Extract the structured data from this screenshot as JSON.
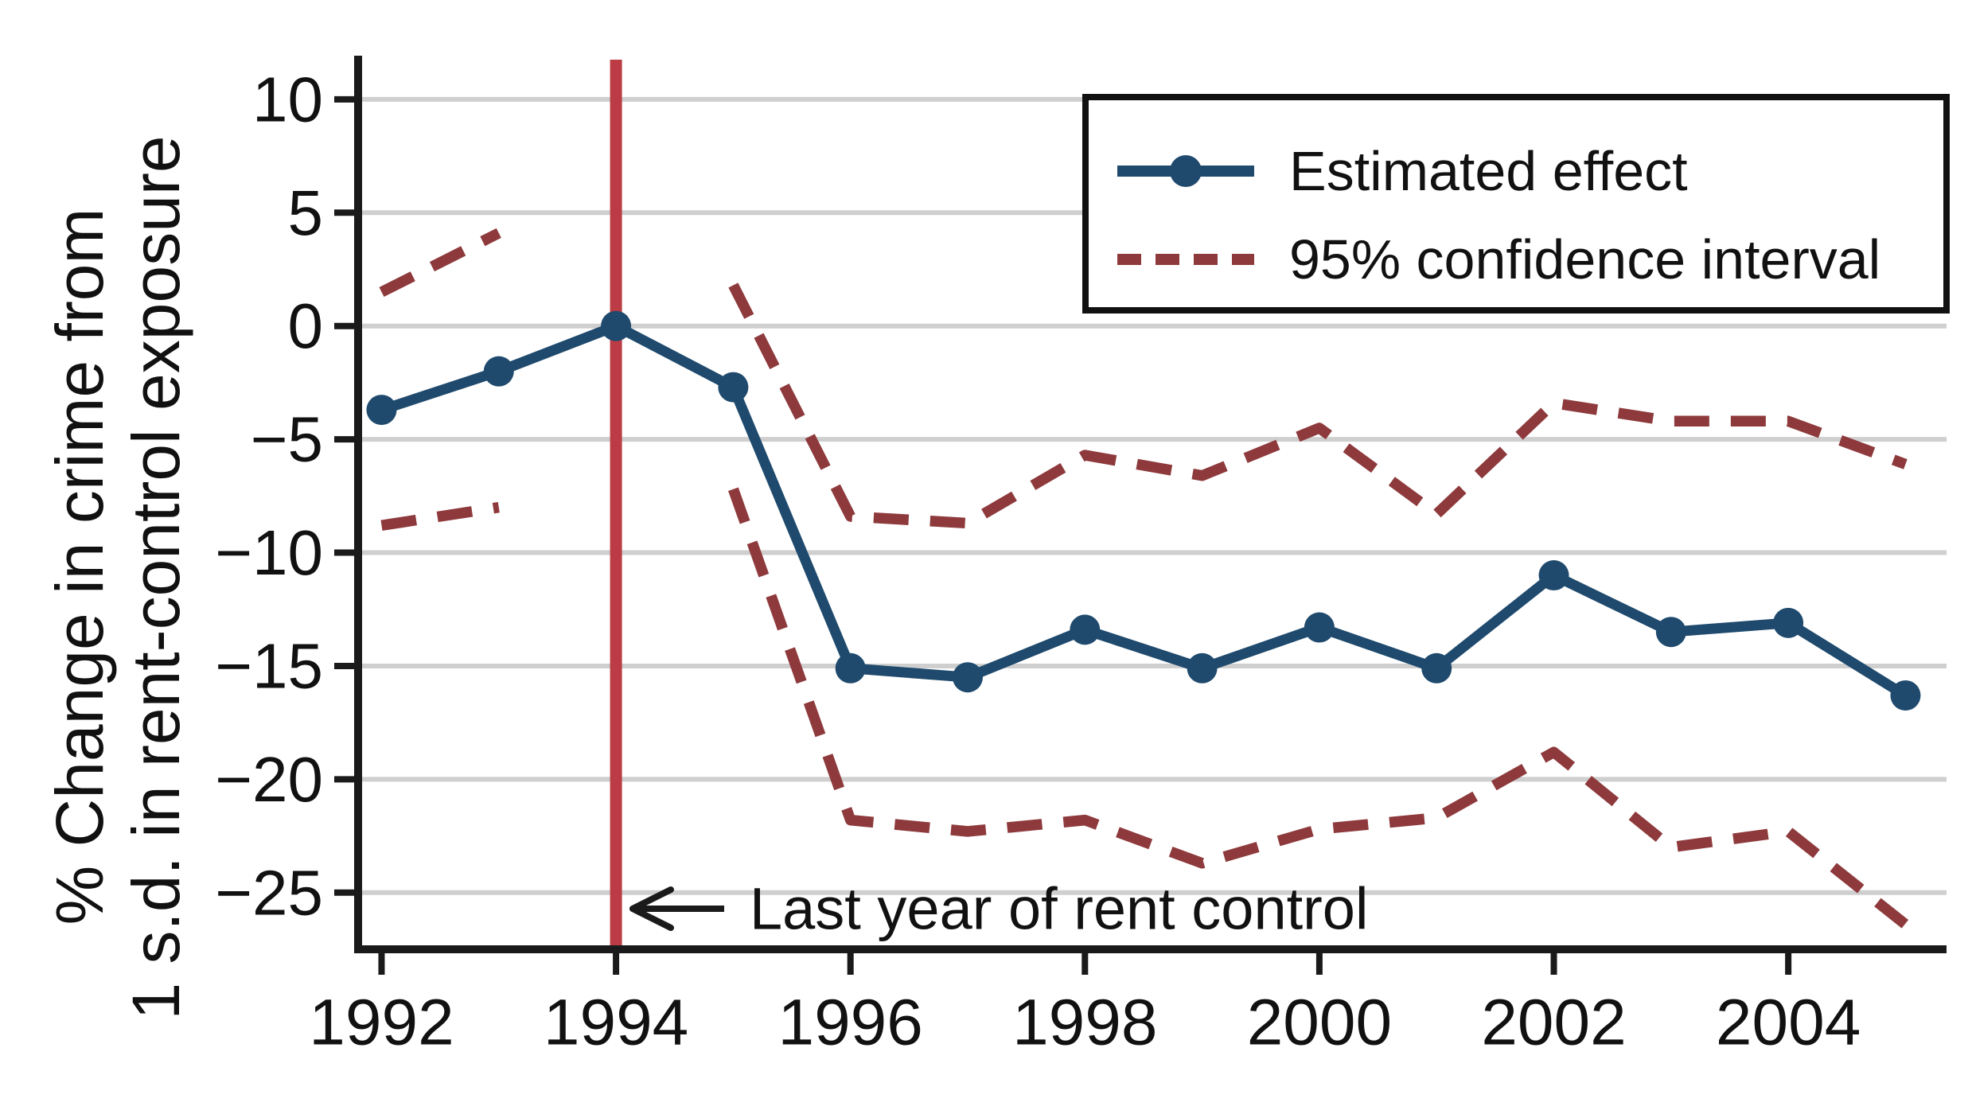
{
  "figure": {
    "y_axis_title_line1": "% Change in crime from",
    "y_axis_title_line2": "1 s.d. in rent-control exposure",
    "annotation": {
      "arrow_symbol": "←",
      "text": "Last year of rent control"
    },
    "legend": {
      "items": [
        {
          "label": "Estimated effect",
          "style": "solid-with-marker"
        },
        {
          "label": "95% confidence interval",
          "style": "dashed"
        }
      ]
    },
    "colors": {
      "effect_line": "#1f4a6d",
      "ci_line": "#8e3a3c",
      "event_line": "#bc3c46",
      "gridline": "#cfcfcf",
      "axis": "#1a1a1a",
      "legend_border": "#111111",
      "background": "#ffffff",
      "text": "#111111"
    }
  },
  "chart_data": {
    "type": "line",
    "title": "",
    "xlabel": "",
    "ylabel": "% Change in crime from 1 s.d. in rent-control exposure",
    "x": [
      1992,
      1993,
      1994,
      1995,
      1996,
      1997,
      1998,
      1999,
      2000,
      2001,
      2002,
      2003,
      2004,
      2005
    ],
    "series": [
      {
        "name": "Estimated effect",
        "values": [
          -3.7,
          -2.0,
          0.0,
          -2.7,
          -15.1,
          -15.5,
          -13.4,
          -15.1,
          -13.3,
          -15.1,
          -11.0,
          -13.5,
          -13.1,
          -16.3
        ]
      },
      {
        "name": "95% CI upper bound",
        "values": [
          1.5,
          4.1,
          null,
          1.8,
          -8.4,
          -8.7,
          -5.7,
          -6.6,
          -4.5,
          -8.3,
          -3.4,
          -4.2,
          -4.2,
          -6.1
        ]
      },
      {
        "name": "95% CI lower bound",
        "values": [
          -8.8,
          -8.0,
          null,
          -7.2,
          -21.8,
          -22.3,
          -21.8,
          -23.7,
          -22.2,
          -21.7,
          -18.8,
          -23.0,
          -22.3,
          -26.4
        ]
      }
    ],
    "event_line_x": 1994,
    "x_ticks": [
      1992,
      1994,
      1996,
      1998,
      2000,
      2002,
      2004
    ],
    "x_tick_labels": [
      "1992",
      "1994",
      "1996",
      "1998",
      "2000",
      "2002",
      "2004"
    ],
    "y_ticks": [
      10,
      5,
      0,
      -5,
      -10,
      -15,
      -20,
      -25
    ],
    "y_tick_labels": [
      "10",
      "5",
      "0",
      "−5",
      "−10",
      "−15",
      "−20",
      "−25"
    ],
    "xlim": [
      1991.8,
      2005.35
    ],
    "ylim": [
      -27.5,
      11.75
    ],
    "grid": true,
    "legend_position": "top-right"
  }
}
